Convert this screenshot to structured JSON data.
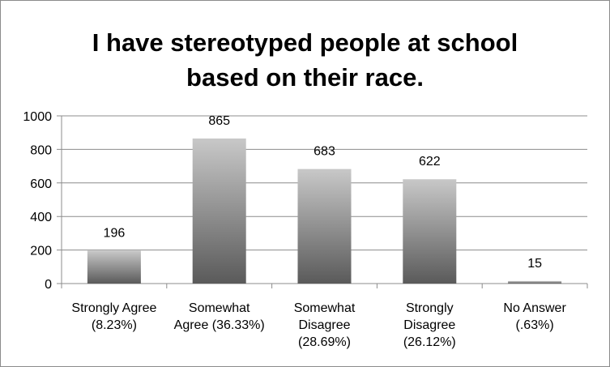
{
  "chart_data": {
    "type": "bar",
    "title": "I have stereotyped people at school\nbased on their race.",
    "xlabel": "",
    "ylabel": "",
    "categories": [
      "Strongly Agree (8.23%)",
      "Somewhat Agree (36.33%)",
      "Somewhat Disagree (28.69%)",
      "Strongly Disagree (26.12%)",
      "No Answer (.63%)"
    ],
    "category_lines": [
      [
        "Strongly Agree",
        "(8.23%)"
      ],
      [
        "Somewhat",
        "Agree (36.33%)"
      ],
      [
        "Somewhat",
        "Disagree",
        "(28.69%)"
      ],
      [
        "Strongly",
        "Disagree",
        "(26.12%)"
      ],
      [
        "No Answer",
        "(.63%)"
      ]
    ],
    "values": [
      196,
      865,
      683,
      622,
      15
    ],
    "data_labels": [
      "196",
      "865",
      "683",
      "622",
      "15"
    ],
    "ylim": [
      0,
      1000
    ],
    "yticks": [
      0,
      200,
      400,
      600,
      800,
      1000
    ],
    "ytick_labels": [
      "0",
      "200",
      "400",
      "600",
      "800",
      "1000"
    ],
    "grid": true,
    "legend": "none",
    "colors": {
      "bar_top": "#c8c8c8",
      "bar_bottom": "#5a5a5a",
      "grid": "#8c8c8c",
      "axis": "#8c8c8c"
    }
  }
}
